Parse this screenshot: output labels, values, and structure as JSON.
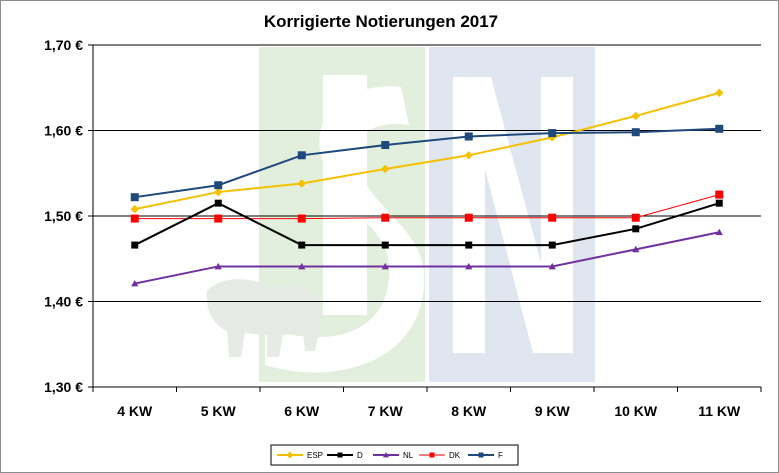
{
  "chart_data": {
    "type": "line",
    "title": "Korrigierte Notierungen 2017",
    "xlabel": "",
    "ylabel": "",
    "categories": [
      "4 KW",
      "5 KW",
      "6 KW",
      "7 KW",
      "8 KW",
      "9 KW",
      "10 KW",
      "11 KW"
    ],
    "ylim": [
      1.3,
      1.7
    ],
    "yticks": [
      1.3,
      1.4,
      1.5,
      1.6,
      1.7
    ],
    "ytick_labels": [
      "1,30 €",
      "1,40 €",
      "1,50 €",
      "1,60 €",
      "1,70 €"
    ],
    "grid": true,
    "legend_position": "bottom",
    "series": [
      {
        "name": "ESP",
        "color": "#f5c000",
        "marker": "diamond",
        "values": [
          1.508,
          1.528,
          1.538,
          1.555,
          1.571,
          1.592,
          1.617,
          1.644
        ]
      },
      {
        "name": "D",
        "color": "#000000",
        "marker": "square",
        "values": [
          1.466,
          1.515,
          1.466,
          1.466,
          1.466,
          1.466,
          1.485,
          1.515
        ]
      },
      {
        "name": "NL",
        "color": "#7030a0",
        "marker": "triangle",
        "values": [
          1.421,
          1.441,
          1.441,
          1.441,
          1.441,
          1.441,
          1.461,
          1.481
        ]
      },
      {
        "name": "DK",
        "color": "#ff0000",
        "marker": "square",
        "values": [
          1.497,
          1.497,
          1.497,
          1.498,
          1.498,
          1.498,
          1.498,
          1.525
        ]
      },
      {
        "name": "F",
        "color": "#1f497d",
        "marker": "square",
        "values": [
          1.522,
          1.536,
          1.571,
          1.583,
          1.593,
          1.597,
          1.598,
          1.602
        ]
      }
    ]
  }
}
